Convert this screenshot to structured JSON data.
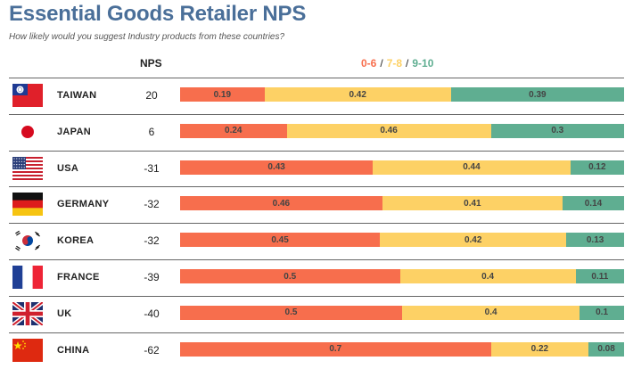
{
  "title": "Essential Goods Retailer NPS",
  "subtitle": "How likely would you suggest Industry products from these countries?",
  "colors": {
    "title": "#4a6f99",
    "detractor": "#f76e4d",
    "passive": "#fdd165",
    "promoter": "#5fae91"
  },
  "chart_data": {
    "type": "bar",
    "stacked": true,
    "orientation": "horizontal",
    "title": "Essential Goods Retailer NPS",
    "subtitle": "How likely would you suggest Industry products from these countries?",
    "nps_column_label": "NPS",
    "legend": [
      {
        "label": "0-6",
        "color": "#f76e4d"
      },
      {
        "label": "7-8",
        "color": "#fdd165"
      },
      {
        "label": "9-10",
        "color": "#5fae91"
      }
    ],
    "legend_separator": "/",
    "legend_position": "top",
    "categories": [
      "TAIWAN",
      "JAPAN",
      "USA",
      "GERMANY",
      "KOREA",
      "FRANCE",
      "UK",
      "CHINA"
    ],
    "nps": [
      20,
      6,
      -31,
      -32,
      -32,
      -39,
      -40,
      -62
    ],
    "series": [
      {
        "name": "0-6",
        "values": [
          0.19,
          0.24,
          0.43,
          0.46,
          0.45,
          0.5,
          0.5,
          0.7
        ]
      },
      {
        "name": "7-8",
        "values": [
          0.42,
          0.46,
          0.44,
          0.41,
          0.42,
          0.4,
          0.4,
          0.22
        ]
      },
      {
        "name": "9-10",
        "values": [
          0.39,
          0.3,
          0.12,
          0.14,
          0.13,
          0.11,
          0.1,
          0.08
        ]
      }
    ],
    "flags": [
      "taiwan-flag",
      "japan-flag",
      "usa-flag",
      "germany-flag",
      "korea-flag",
      "france-flag",
      "uk-flag",
      "china-flag"
    ]
  }
}
